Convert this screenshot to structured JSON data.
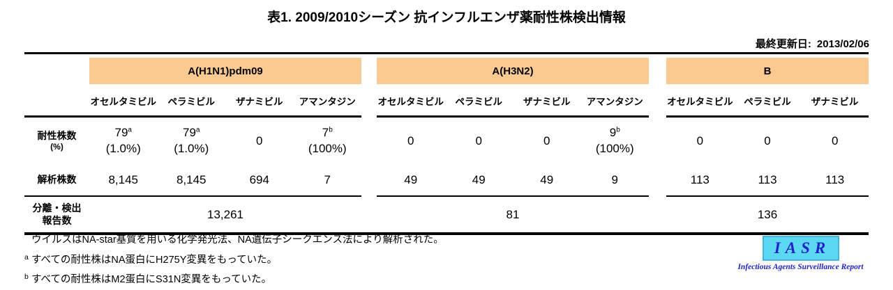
{
  "title": "表1. 2009/2010シーズン 抗インフルエンザ薬耐性株検出情報",
  "updated": {
    "label": "最終更新日:",
    "date": "2013/02/06"
  },
  "colors": {
    "band": "#FBCA90",
    "logo_bg": "#5BD9F2",
    "logo_border": "#45B5DD",
    "logo_text": "#2222CC"
  },
  "table": {
    "groups": [
      {
        "label": "A(H1N1)pdm09",
        "columns": [
          "オセルタミビル",
          "ペラミビル",
          "ザナミビル",
          "アマンタジン"
        ]
      },
      {
        "label": "A(H3N2)",
        "columns": [
          "オセルタミビル",
          "ペラミビル",
          "ザナミビル",
          "アマンタジン"
        ]
      },
      {
        "label": "B",
        "columns": [
          "オセルタミビル",
          "ペラミビル",
          "ザナミビル"
        ]
      }
    ],
    "rows": {
      "resistant": {
        "label": "耐性株数",
        "label_sub": "(%)",
        "groups": [
          {
            "cells": [
              {
                "value": "79",
                "sup": "a",
                "pct": "(1.0%)"
              },
              {
                "value": "79",
                "sup": "a",
                "pct": "(1.0%)"
              },
              {
                "value": "0",
                "sup": "",
                "pct": ""
              },
              {
                "value": "7",
                "sup": "b",
                "pct": "(100%)"
              }
            ]
          },
          {
            "cells": [
              {
                "value": "0",
                "sup": "",
                "pct": ""
              },
              {
                "value": "0",
                "sup": "",
                "pct": ""
              },
              {
                "value": "0",
                "sup": "",
                "pct": ""
              },
              {
                "value": "9",
                "sup": "b",
                "pct": "(100%)"
              }
            ]
          },
          {
            "cells": [
              {
                "value": "0",
                "sup": "",
                "pct": ""
              },
              {
                "value": "0",
                "sup": "",
                "pct": ""
              },
              {
                "value": "0",
                "sup": "",
                "pct": ""
              }
            ]
          }
        ]
      },
      "analyzed": {
        "label": "解析株数",
        "groups": [
          [
            "8,145",
            "8,145",
            "694",
            "7"
          ],
          [
            "49",
            "49",
            "49",
            "9"
          ],
          [
            "113",
            "113",
            "113"
          ]
        ]
      },
      "reported": {
        "label_line1": "分離・検出",
        "label_line2": "報告数",
        "values": [
          "13,261",
          "81",
          "136"
        ]
      }
    }
  },
  "footnotes": [
    {
      "sup": "",
      "text": "ウイルスはNA-star基質を用いる化学発光法、NA遺伝子シークエンス法により解析された。"
    },
    {
      "sup": "a",
      "text": "すべての耐性株はNA蛋白にH275Y変異をもっていた。"
    },
    {
      "sup": "b",
      "text": "すべての耐性株はM2蛋白にS31N変異をもっていた。"
    }
  ],
  "logo": {
    "acronym": "IASR",
    "caption": "Infectious Agents Surveillance Report"
  }
}
